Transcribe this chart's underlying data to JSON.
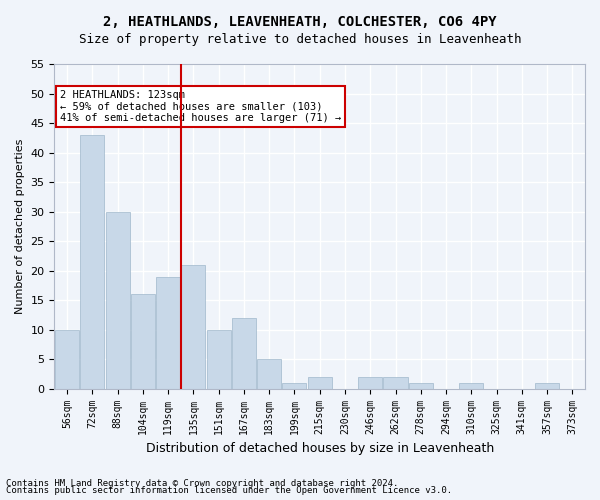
{
  "title1": "2, HEATHLANDS, LEAVENHEATH, COLCHESTER, CO6 4PY",
  "title2": "Size of property relative to detached houses in Leavenheath",
  "xlabel": "Distribution of detached houses by size in Leavenheath",
  "ylabel": "Number of detached properties",
  "categories": [
    "56sqm",
    "72sqm",
    "88sqm",
    "104sqm",
    "119sqm",
    "135sqm",
    "151sqm",
    "167sqm",
    "183sqm",
    "199sqm",
    "215sqm",
    "230sqm",
    "246sqm",
    "262sqm",
    "278sqm",
    "294sqm",
    "310sqm",
    "325sqm",
    "341sqm",
    "357sqm",
    "373sqm"
  ],
  "values": [
    10,
    43,
    30,
    16,
    19,
    21,
    10,
    12,
    5,
    1,
    2,
    0,
    2,
    2,
    1,
    0,
    1,
    0,
    0,
    1,
    0
  ],
  "bar_color": "#c8d8e8",
  "bar_edge_color": "#a0b8cc",
  "vline_x": 4.5,
  "vline_color": "#cc0000",
  "annotation_text": "2 HEATHLANDS: 123sqm\n← 59% of detached houses are smaller (103)\n41% of semi-detached houses are larger (71) →",
  "annotation_box_color": "#ffffff",
  "annotation_box_edge": "#cc0000",
  "ylim": [
    0,
    55
  ],
  "yticks": [
    0,
    5,
    10,
    15,
    20,
    25,
    30,
    35,
    40,
    45,
    50,
    55
  ],
  "footer1": "Contains HM Land Registry data © Crown copyright and database right 2024.",
  "footer2": "Contains public sector information licensed under the Open Government Licence v3.0.",
  "bg_color": "#f0f4fa",
  "grid_color": "#ffffff"
}
